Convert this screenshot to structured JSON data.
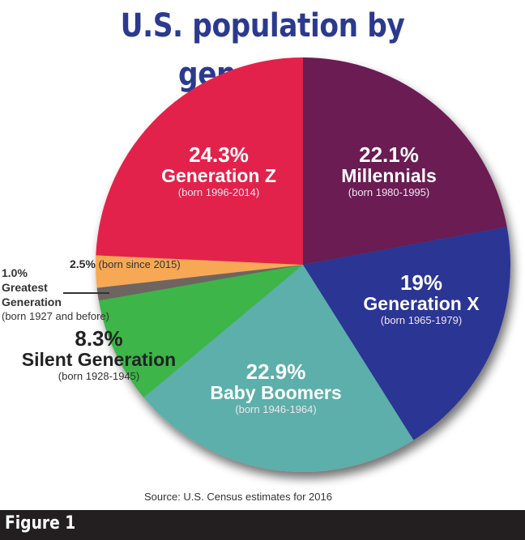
{
  "title": "U.S. population by generation",
  "source": "Source: U.S. Census estimates for 2016",
  "figure_label": "Figure 1",
  "labels": {
    "millennials": {
      "pct": "22.1%",
      "name": "Millennials",
      "born": "(born 1980-1995)"
    },
    "genx": {
      "pct": "19%",
      "name": "Generation X",
      "born": "(born 1965-1979)"
    },
    "boomers": {
      "pct": "22.9%",
      "name": "Baby Boomers",
      "born": "(born 1946-1964)"
    },
    "silent": {
      "pct": "8.3%",
      "name": "Silent Generation",
      "born": "(born 1928-1945)"
    },
    "greatest": {
      "pct": "1.0%",
      "name1": "Greatest",
      "name2": "Generation",
      "born": "(born 1927 and before)"
    },
    "since2015": {
      "pct": "2.5%",
      "born": "(born since 2015)"
    },
    "genz": {
      "pct": "24.3%",
      "name": "Generation Z",
      "born": "(born 1996-2014)"
    }
  },
  "chart_data": {
    "type": "pie",
    "title": "U.S. population by generation",
    "source": "Source: U.S. Census estimates for 2016",
    "start_angle": "12 o'clock",
    "direction": "clockwise",
    "categories": [
      "Millennials (born 1980-1995)",
      "Generation X (born 1965-1979)",
      "Baby Boomers (born 1946-1964)",
      "Silent Generation (born 1928-1945)",
      "Greatest Generation (born 1927 and before)",
      "(born since 2015)",
      "Generation Z (born 1996-2014)"
    ],
    "values": [
      22.1,
      19.0,
      22.9,
      8.3,
      1.0,
      2.5,
      24.3
    ],
    "unit": "%",
    "colors": [
      "#6b1a52",
      "#2b3494",
      "#5bafaa",
      "#3db54a",
      "#6e6560",
      "#f7a854",
      "#e3204b"
    ]
  }
}
